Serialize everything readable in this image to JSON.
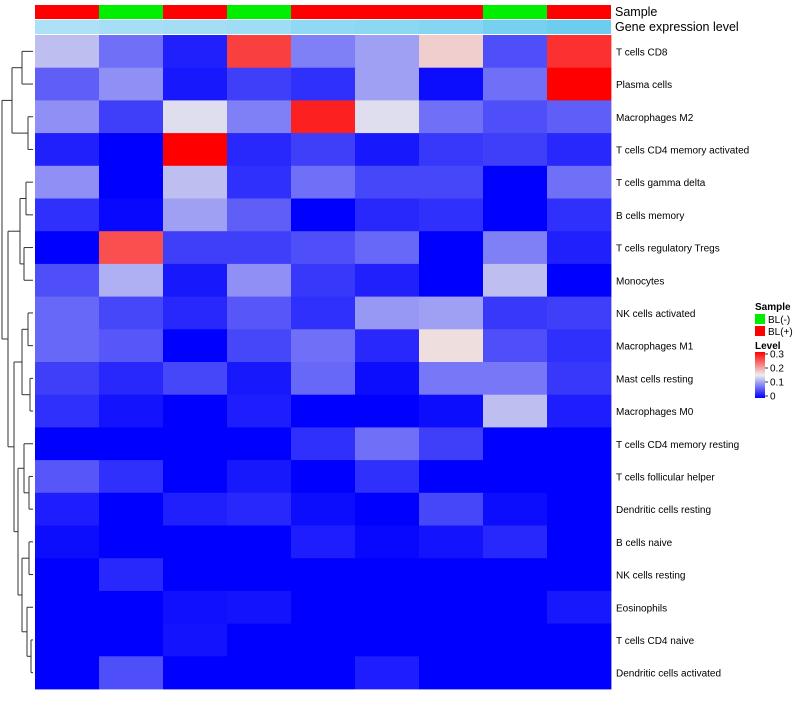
{
  "chart_data": {
    "type": "heatmap",
    "title": "",
    "annotation_tracks": [
      {
        "name": "Sample",
        "values": [
          "BL(+)",
          "BL(-)",
          "BL(+)",
          "BL(-)",
          "BL(+)",
          "BL(+)",
          "BL(+)",
          "BL(-)",
          "BL(+)"
        ]
      },
      {
        "name": "Gene expression level",
        "values": [
          0.45,
          0.5,
          0.52,
          0.55,
          0.65,
          0.68,
          0.72,
          0.82,
          0.9
        ]
      }
    ],
    "rows": [
      "T cells CD8",
      "Plasma cells",
      "Macrophages M2",
      "T cells CD4 memory activated",
      "T cells gamma delta",
      "B cells memory",
      "T cells regulatory  Tregs",
      "Monocytes",
      "NK cells activated",
      "Macrophages M1",
      "Mast cells resting",
      "Macrophages M0",
      "T cells CD4 memory resting",
      "T cells follicular helper",
      "Dendritic cells resting",
      "B cells naive",
      "NK cells resting",
      "Eosinophils",
      "T cells CD4 naive",
      "Dendritic cells activated"
    ],
    "values": [
      [
        0.12,
        0.07,
        0.02,
        0.26,
        0.08,
        0.1,
        0.17,
        0.05,
        0.27
      ],
      [
        0.06,
        0.09,
        0.015,
        0.04,
        0.03,
        0.1,
        0.008,
        0.07,
        0.3
      ],
      [
        0.09,
        0.04,
        0.14,
        0.08,
        0.28,
        0.14,
        0.07,
        0.05,
        0.06
      ],
      [
        0.02,
        0.0,
        0.3,
        0.025,
        0.04,
        0.015,
        0.035,
        0.04,
        0.025
      ],
      [
        0.09,
        0.0,
        0.12,
        0.03,
        0.07,
        0.045,
        0.045,
        0.0,
        0.07
      ],
      [
        0.03,
        0.005,
        0.1,
        0.06,
        0.0,
        0.025,
        0.03,
        0.0,
        0.03
      ],
      [
        0.0,
        0.25,
        0.04,
        0.04,
        0.05,
        0.065,
        0.0,
        0.08,
        0.02
      ],
      [
        0.05,
        0.11,
        0.015,
        0.09,
        0.035,
        0.02,
        0.0,
        0.12,
        0.0
      ],
      [
        0.065,
        0.045,
        0.025,
        0.055,
        0.03,
        0.095,
        0.1,
        0.035,
        0.04
      ],
      [
        0.065,
        0.055,
        0.0,
        0.045,
        0.07,
        0.025,
        0.16,
        0.05,
        0.03
      ],
      [
        0.04,
        0.025,
        0.045,
        0.015,
        0.065,
        0.008,
        0.075,
        0.075,
        0.035
      ],
      [
        0.03,
        0.012,
        0.0,
        0.018,
        0.0,
        0.0,
        0.008,
        0.12,
        0.018
      ],
      [
        0.0,
        0.0,
        0.0,
        0.0,
        0.03,
        0.07,
        0.04,
        0.0,
        0.0
      ],
      [
        0.055,
        0.03,
        0.0,
        0.015,
        0.0,
        0.03,
        0.0,
        0.0,
        0.0
      ],
      [
        0.018,
        0.0,
        0.02,
        0.025,
        0.008,
        0.0,
        0.045,
        0.008,
        0.0
      ],
      [
        0.008,
        0.0,
        0.0,
        0.0,
        0.018,
        0.005,
        0.012,
        0.025,
        0.0
      ],
      [
        0.0,
        0.025,
        0.0,
        0.0,
        0.0,
        0.0,
        0.0,
        0.0,
        0.0
      ],
      [
        0.0,
        0.0,
        0.01,
        0.012,
        0.0,
        0.0,
        0.0,
        0.0,
        0.015
      ],
      [
        0.0,
        0.0,
        0.012,
        0.0,
        0.0,
        0.0,
        0.0,
        0.0,
        0.0
      ],
      [
        0.0,
        0.05,
        0.0,
        0.0,
        0.0,
        0.018,
        0.0,
        0.0,
        0.0
      ]
    ],
    "color_scale": {
      "min": 0,
      "mid": 0.15,
      "max": 0.3,
      "low": "#0000ff",
      "midColor": "#eeeeee",
      "high": "#ff0000"
    },
    "legends": [
      {
        "title": "Sample",
        "entries": [
          {
            "label": "BL(-)",
            "color": "#00ee00"
          },
          {
            "label": "BL(+)",
            "color": "#ff0000"
          }
        ]
      },
      {
        "title": "Level",
        "ticks": [
          0.3,
          0.2,
          0.1,
          0
        ]
      }
    ],
    "legend_position": "right",
    "track_colors": {
      "BL(+)": "#ff0000",
      "BL(-)": "#00ee00"
    },
    "expression_track_colors": {
      "low": "#eef6fb",
      "high": "#5ec8ee"
    },
    "dendrogram_side": "left",
    "grid": false
  }
}
